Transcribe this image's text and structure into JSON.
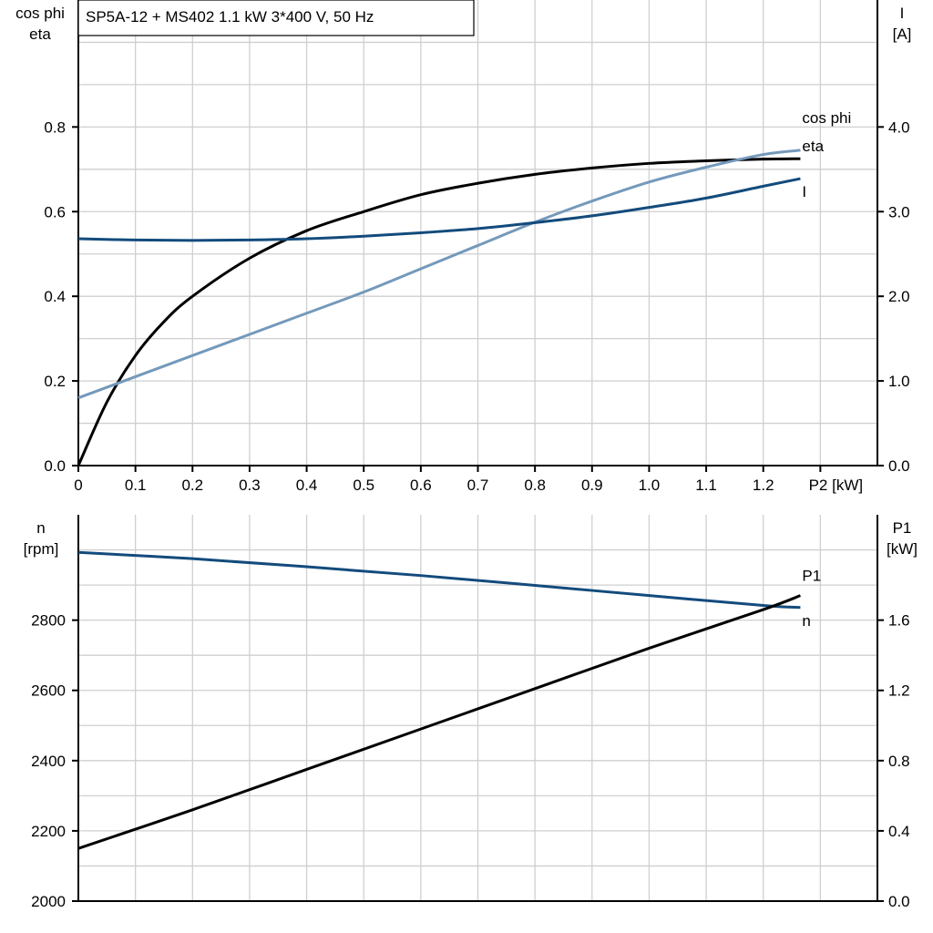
{
  "chart_data": [
    {
      "type": "line",
      "title": "SP5A-12 + MS402   1.1 kW   3*400 V, 50 Hz",
      "xlabel": "P2 [kW]",
      "ylabel_left": [
        "cos phi",
        "eta"
      ],
      "ylabel_right": [
        "I",
        "[A]"
      ],
      "xlim": [
        0,
        1.4
      ],
      "ylim_left": [
        0,
        1.1
      ],
      "ylim_right": [
        0,
        5.5
      ],
      "x_ticks": [
        "0",
        "0.1",
        "0.2",
        "0.3",
        "0.4",
        "0.5",
        "0.6",
        "0.7",
        "0.8",
        "0.9",
        "1.0",
        "1.1",
        "1.2"
      ],
      "y_ticks_left": [
        "0.0",
        "0.2",
        "0.4",
        "0.6",
        "0.8"
      ],
      "y_ticks_right": [
        "0.0",
        "1.0",
        "2.0",
        "3.0",
        "4.0"
      ],
      "grid": true,
      "series": [
        {
          "name": "eta",
          "axis": "left",
          "color": "#000000",
          "x": [
            0,
            0.05,
            0.1,
            0.15,
            0.2,
            0.3,
            0.4,
            0.5,
            0.6,
            0.7,
            0.8,
            0.9,
            1.0,
            1.1,
            1.2,
            1.265
          ],
          "y": [
            0,
            0.15,
            0.26,
            0.34,
            0.4,
            0.49,
            0.555,
            0.6,
            0.64,
            0.667,
            0.688,
            0.703,
            0.714,
            0.72,
            0.724,
            0.725
          ]
        },
        {
          "name": "cos phi",
          "axis": "left",
          "color": "#7499bb",
          "x": [
            0,
            0.1,
            0.2,
            0.3,
            0.4,
            0.5,
            0.6,
            0.7,
            0.8,
            0.9,
            1.0,
            1.1,
            1.2,
            1.265
          ],
          "y": [
            0.16,
            0.21,
            0.26,
            0.31,
            0.36,
            0.41,
            0.465,
            0.52,
            0.575,
            0.625,
            0.67,
            0.705,
            0.735,
            0.745
          ]
        },
        {
          "name": "I",
          "axis": "right",
          "color": "#134b7c",
          "x": [
            0,
            0.1,
            0.2,
            0.3,
            0.4,
            0.5,
            0.6,
            0.7,
            0.8,
            0.9,
            1.0,
            1.1,
            1.2,
            1.265
          ],
          "y": [
            2.68,
            2.665,
            2.66,
            2.665,
            2.68,
            2.71,
            2.75,
            2.8,
            2.87,
            2.95,
            3.05,
            3.16,
            3.3,
            3.39
          ]
        }
      ]
    },
    {
      "type": "line",
      "xlim": [
        0,
        1.4
      ],
      "ylabel_left": [
        "n",
        "[rpm]"
      ],
      "ylabel_right": [
        "P1",
        "[kW]"
      ],
      "ylim_left": [
        2000,
        3100
      ],
      "ylim_right": [
        0,
        2.2
      ],
      "y_ticks_left": [
        "2000",
        "2200",
        "2400",
        "2600",
        "2800"
      ],
      "y_ticks_right": [
        "0.0",
        "0.4",
        "0.8",
        "1.2",
        "1.6"
      ],
      "grid": true,
      "series": [
        {
          "name": "n",
          "axis": "left",
          "color": "#134b7c",
          "x": [
            0,
            0.2,
            0.4,
            0.6,
            0.8,
            1.0,
            1.2,
            1.265
          ],
          "y": [
            2993,
            2975,
            2952,
            2927,
            2899,
            2870,
            2842,
            2836
          ]
        },
        {
          "name": "P1",
          "axis": "right",
          "color": "#000000",
          "x": [
            0,
            0.2,
            0.4,
            0.6,
            0.8,
            1.0,
            1.2,
            1.265
          ],
          "y": [
            0.3,
            0.52,
            0.75,
            0.98,
            1.21,
            1.44,
            1.66,
            1.74
          ]
        }
      ]
    }
  ]
}
